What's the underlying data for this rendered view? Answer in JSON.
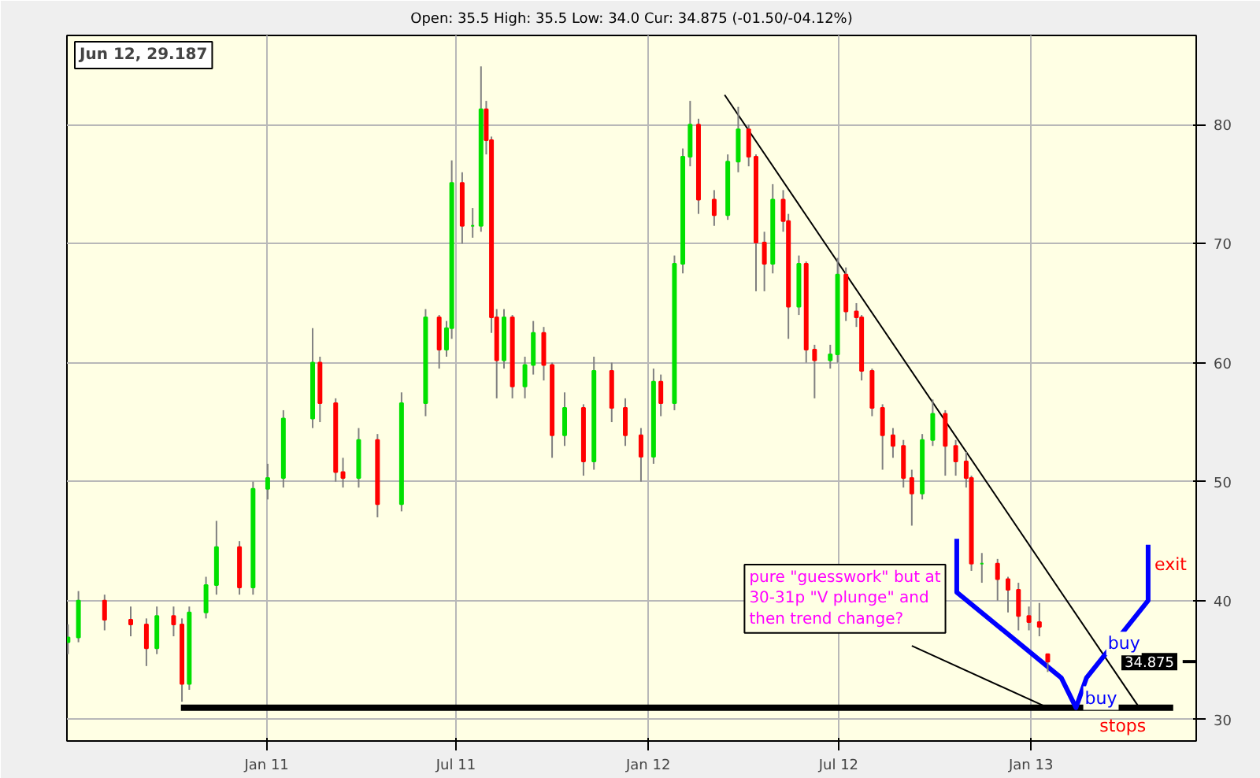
{
  "chart_data": {
    "type": "candlestick",
    "subtitle": "Open: 35.5 High: 35.5 Low: 34.0 Cur: 34.875 (-01.50/-04.12%)",
    "x": [
      "2010-06-25",
      "2010-07-05",
      "2010-07-30",
      "2010-08-24",
      "2010-09-08",
      "2010-09-18",
      "2010-10-04",
      "2010-10-12",
      "2010-10-19",
      "2010-11-04",
      "2010-11-14",
      "2010-12-06",
      "2010-12-19",
      "2011-01-02",
      "2011-01-17",
      "2011-02-14",
      "2011-02-21",
      "2011-03-08",
      "2011-03-15",
      "2011-03-30",
      "2011-04-17",
      "2011-05-10",
      "2011-06-02",
      "2011-06-15",
      "2011-06-22",
      "2011-06-27",
      "2011-07-07",
      "2011-07-17",
      "2011-07-25",
      "2011-07-30",
      "2011-08-04",
      "2011-08-09",
      "2011-08-16",
      "2011-08-24",
      "2011-09-05",
      "2011-09-13",
      "2011-09-23",
      "2011-10-01",
      "2011-10-13",
      "2011-10-31",
      "2011-11-10",
      "2011-11-27",
      "2011-12-10",
      "2011-12-25",
      "2012-01-06",
      "2012-01-13",
      "2012-01-26",
      "2012-02-03",
      "2012-02-10",
      "2012-02-18",
      "2012-03-04",
      "2012-03-17",
      "2012-03-27",
      "2012-04-06",
      "2012-04-13",
      "2012-04-21",
      "2012-04-29",
      "2012-05-09",
      "2012-05-14",
      "2012-05-24",
      "2012-05-31",
      "2012-06-08",
      "2012-06-23",
      "2012-06-30",
      "2012-07-08",
      "2012-07-18",
      "2012-07-23",
      "2012-08-02",
      "2012-08-12",
      "2012-08-22",
      "2012-09-01",
      "2012-09-09",
      "2012-09-19",
      "2012-09-29",
      "2012-10-11",
      "2012-10-21",
      "2012-10-31",
      "2012-11-05",
      "2012-11-15",
      "2012-11-30",
      "2012-12-10",
      "2012-12-20",
      "2012-12-30",
      "2013-01-09",
      "2013-01-17"
    ],
    "ohlc": [
      [
        36.5,
        38,
        35.5,
        36.9
      ],
      [
        36.9,
        40.8,
        36.5,
        40
      ],
      [
        40,
        40.5,
        37.5,
        38.4
      ],
      [
        38.4,
        39.5,
        37,
        38
      ],
      [
        38,
        38.5,
        34.5,
        36
      ],
      [
        36,
        39.5,
        35.5,
        38.7
      ],
      [
        38.7,
        39.5,
        37,
        38
      ],
      [
        38,
        38.5,
        31.5,
        33
      ],
      [
        33,
        39.5,
        32.5,
        39
      ],
      [
        39,
        42,
        38.5,
        41.3
      ],
      [
        41.3,
        46.7,
        40.5,
        44.5
      ],
      [
        44.5,
        45,
        40.5,
        41.1
      ],
      [
        41.1,
        50,
        40.5,
        49.4
      ],
      [
        49.4,
        51.5,
        48.5,
        50.3
      ],
      [
        50.3,
        56,
        49.5,
        55.3
      ],
      [
        55.3,
        62.9,
        54.5,
        60
      ],
      [
        60,
        60.5,
        55,
        56.6
      ],
      [
        56.6,
        57,
        50,
        50.8
      ],
      [
        50.8,
        52,
        49.5,
        50.3
      ],
      [
        50.3,
        54.5,
        49.5,
        53.5
      ],
      [
        53.5,
        54,
        47,
        48.1
      ],
      [
        48.1,
        57.5,
        47.5,
        56.6
      ],
      [
        56.6,
        64.5,
        55.5,
        63.8
      ],
      [
        63.8,
        64,
        59.5,
        61.1
      ],
      [
        61.1,
        63.5,
        60.5,
        62.9
      ],
      [
        62.9,
        77,
        62,
        75.1
      ],
      [
        75.1,
        76,
        70,
        71.5
      ],
      [
        71.5,
        73,
        70.5,
        71.5
      ],
      [
        71.5,
        84.9,
        71,
        81.3
      ],
      [
        81.3,
        82,
        77.5,
        78.7
      ],
      [
        78.7,
        79,
        62.5,
        63.8
      ],
      [
        63.8,
        64.5,
        57,
        60.2
      ],
      [
        60.2,
        64.5,
        59.5,
        63.8
      ],
      [
        63.8,
        64,
        57,
        58
      ],
      [
        58,
        60.5,
        57,
        59.8
      ],
      [
        59.8,
        63.5,
        59,
        62.5
      ],
      [
        62.5,
        63,
        58.5,
        59.8
      ],
      [
        59.8,
        60,
        52,
        53.9
      ],
      [
        53.9,
        57.5,
        53,
        56.2
      ],
      [
        56.2,
        56.5,
        50.5,
        51.7
      ],
      [
        51.7,
        60.5,
        51,
        59.3
      ],
      [
        59.3,
        60,
        55,
        56.2
      ],
      [
        56.2,
        57,
        53,
        53.9
      ],
      [
        53.9,
        54.5,
        50,
        52.1
      ],
      [
        52.1,
        59.5,
        51.5,
        58.4
      ],
      [
        58.4,
        59,
        55.5,
        56.6
      ],
      [
        56.6,
        69,
        56,
        68.3
      ],
      [
        68.3,
        78,
        67.5,
        77.3
      ],
      [
        77.3,
        82,
        76.5,
        80
      ],
      [
        80,
        80.5,
        72.5,
        73.7
      ],
      [
        73.7,
        74.5,
        71.5,
        72.4
      ],
      [
        72.4,
        77.5,
        72,
        76.9
      ],
      [
        76.9,
        81.5,
        76,
        79.6
      ],
      [
        79.6,
        80,
        76.5,
        77.3
      ],
      [
        77.3,
        77.5,
        66,
        70.1
      ],
      [
        70.1,
        71,
        66,
        68.3
      ],
      [
        68.3,
        75,
        67.5,
        73.7
      ],
      [
        73.7,
        74.5,
        71,
        71.9
      ],
      [
        71.9,
        72.5,
        62,
        64.7
      ],
      [
        64.7,
        69,
        64,
        68.3
      ],
      [
        68.3,
        68.5,
        60,
        61.1
      ],
      [
        61.1,
        61.5,
        57,
        60.2
      ],
      [
        60.2,
        61.5,
        59.5,
        60.7
      ],
      [
        60.7,
        68.8,
        60,
        67.4
      ],
      [
        67.4,
        68,
        63.5,
        64.3
      ],
      [
        64.3,
        65,
        63,
        63.8
      ],
      [
        63.8,
        64,
        58.5,
        59.3
      ],
      [
        59.3,
        59.5,
        55.5,
        56.2
      ],
      [
        56.2,
        56.5,
        51,
        53.9
      ],
      [
        53.9,
        54.5,
        52,
        53
      ],
      [
        53,
        53.5,
        49.5,
        50.3
      ],
      [
        50.3,
        51,
        46.3,
        49
      ],
      [
        49,
        54,
        48.5,
        53.5
      ],
      [
        53.5,
        56.9,
        53,
        55.7
      ],
      [
        55.7,
        56,
        50.5,
        53
      ],
      [
        53,
        53.5,
        50.5,
        51.7
      ],
      [
        51.7,
        52.5,
        49.5,
        50.3
      ],
      [
        50.3,
        50.5,
        42.5,
        43.1
      ],
      [
        43.1,
        44,
        41.5,
        43.1
      ],
      [
        43.1,
        43.5,
        40,
        41.8
      ],
      [
        41.8,
        42,
        39,
        40.9
      ],
      [
        40.9,
        41.5,
        37.5,
        38.7
      ],
      [
        38.7,
        39.5,
        37.5,
        38.2
      ],
      [
        38.2,
        39.8,
        37,
        37.8
      ],
      [
        35.5,
        35.5,
        34,
        34.875
      ]
    ],
    "colors": [
      "#00e000",
      "#00e000",
      "#ff0000",
      "#ff0000",
      "#ff0000",
      "#00e000",
      "#ff0000",
      "#ff0000",
      "#00e000",
      "#00e000",
      "#00e000",
      "#ff0000",
      "#00e000",
      "#00e000",
      "#00e000",
      "#00e000",
      "#ff0000",
      "#ff0000",
      "#ff0000",
      "#00e000",
      "#ff0000",
      "#00e000",
      "#00e000",
      "#ff0000",
      "#00e000",
      "#00e000",
      "#ff0000",
      "#00e000",
      "#00e000",
      "#ff0000",
      "#ff0000",
      "#ff0000",
      "#00e000",
      "#ff0000",
      "#00e000",
      "#00e000",
      "#ff0000",
      "#ff0000",
      "#00e000",
      "#ff0000",
      "#00e000",
      "#ff0000",
      "#ff0000",
      "#ff0000",
      "#00e000",
      "#ff0000",
      "#00e000",
      "#00e000",
      "#00e000",
      "#ff0000",
      "#ff0000",
      "#00e000",
      "#00e000",
      "#ff0000",
      "#ff0000",
      "#ff0000",
      "#00e000",
      "#ff0000",
      "#ff0000",
      "#00e000",
      "#ff0000",
      "#ff0000",
      "#00e000",
      "#00e000",
      "#ff0000",
      "#ff0000",
      "#ff0000",
      "#ff0000",
      "#ff0000",
      "#ff0000",
      "#ff0000",
      "#ff0000",
      "#00e000",
      "#00e000",
      "#ff0000",
      "#ff0000",
      "#ff0000",
      "#ff0000",
      "#00e000",
      "#ff0000",
      "#ff0000",
      "#ff0000",
      "#ff0000",
      "#ff0000",
      "#ff0000"
    ],
    "series": [
      {
        "type": "line",
        "color": "#000000",
        "x": [
          "2010-10-11",
          "2013-05-17"
        ],
        "values": [
          31,
          31
        ]
      },
      {
        "type": "line",
        "color": "#000000",
        "x": [
          "2012-03-14",
          "2013-04-13"
        ],
        "values": [
          82.5,
          31.2
        ]
      },
      {
        "type": "line",
        "color": "#000000",
        "x": [
          "2012-09-09",
          "2013-01-17"
        ],
        "values": [
          36.2,
          31
        ]
      },
      {
        "type": "line",
        "color": "#0000ff",
        "x": [
          "2012-10-22",
          "2012-10-22",
          "2013-01-30",
          "2013-02-13",
          "2013-02-23",
          "2013-04-23",
          "2013-04-23"
        ],
        "values": [
          45.2,
          40.7,
          33.5,
          31,
          33.5,
          40,
          44.7
        ]
      }
    ],
    "annotations": [
      "Jun 12, 29.187",
      "pure \"guesswork\" but at 30-31p \"V plunge\" and then trend change?",
      {
        "text": "buy",
        "x": "2013-03-20",
        "y": 34.8
      },
      {
        "text": "buy",
        "x": "2013-02-26",
        "y": 31.8
      },
      "exit",
      "stops"
    ],
    "ref_lines": [
      {
        "axis": "y",
        "value": 34.875,
        "label": "34.875",
        "color": "#000000"
      }
    ],
    "xlim": [
      "2010-06-24",
      "2013-06-08"
    ],
    "xticks": [
      {
        "value": "2011-01-01",
        "label": "Jan 11"
      },
      {
        "value": "2011-07-01",
        "label": "Jul 11"
      },
      {
        "value": "2012-01-01",
        "label": "Jan 12"
      },
      {
        "value": "2012-07-01",
        "label": "Jul 12"
      },
      {
        "value": "2013-01-01",
        "label": "Jan 13"
      }
    ],
    "ylim": [
      28.2,
      87.5
    ],
    "yticks": [
      30,
      40,
      50,
      60,
      70,
      80
    ],
    "grid": true
  }
}
